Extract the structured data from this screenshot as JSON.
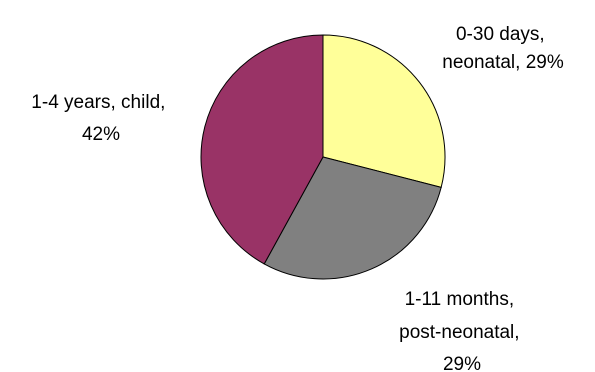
{
  "chart_data": {
    "type": "pie",
    "title": "",
    "slices": [
      {
        "label_lines": [
          "0-30 days,",
          "neonatal, 29%"
        ],
        "category": "0-30 days, neonatal",
        "value": 29,
        "color": "#FFFF99"
      },
      {
        "label_lines": [
          "1-11 months,",
          "post-neonatal,",
          "29%"
        ],
        "category": "1-11 months, post-neonatal",
        "value": 29,
        "color": "#808080"
      },
      {
        "label_lines": [
          "1-4 years, child,",
          "42%"
        ],
        "category": "1-4 years, child",
        "value": 42,
        "color": "#993366"
      }
    ],
    "legend": "none",
    "start_angle_deg": 0,
    "direction": "clockwise"
  }
}
